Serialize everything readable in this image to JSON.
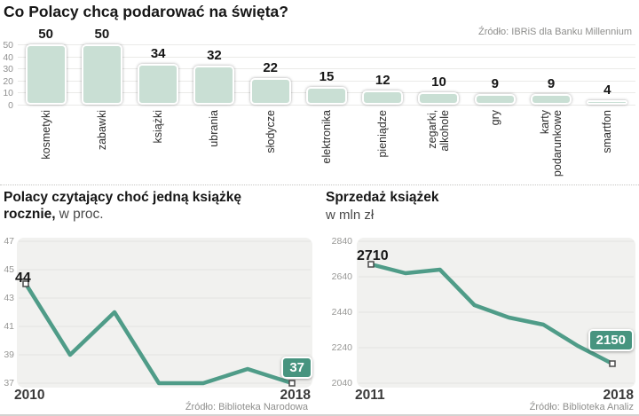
{
  "colors": {
    "bar_fill": "#c9dfd4",
    "line": "#4f9c88",
    "badge_bg": "#47947f",
    "plot_bg": "#f1f1ef"
  },
  "chart_data": [
    {
      "type": "bar",
      "title": "Co Polacy chcą podarować na święta?",
      "source": "Źródło: IBRiS dla Banku Millennium",
      "categories": [
        "kosmetyki",
        "zabawki",
        "książki",
        "ubrania",
        "słodycze",
        "elektronika",
        "pieniądze",
        "zegarki,\nalkohole",
        "gry",
        "karty\npodarunkowe",
        "smartfon"
      ],
      "values": [
        50,
        50,
        34,
        32,
        22,
        15,
        12,
        10,
        9,
        9,
        4
      ],
      "ylim": [
        0,
        50
      ],
      "yticks": [
        50,
        40,
        30,
        20,
        10,
        0
      ],
      "grid": true,
      "bar_color": "#c9dfd4"
    },
    {
      "type": "line",
      "title_line1": "Polacy czytający choć jedną książkę",
      "title_line2_bold": "rocznie,",
      "title_line2_rest": "w proc.",
      "values": [
        44,
        39,
        42,
        37,
        37,
        38,
        37
      ],
      "xtick_labels": [
        "2010",
        "2018"
      ],
      "ylim": [
        37,
        47
      ],
      "yticks": [
        47,
        45,
        43,
        41,
        39,
        37
      ],
      "first_point_label": "44",
      "end_badge": "37",
      "source": "Źródło: Biblioteka Narodowa",
      "line_color": "#4f9c88",
      "grid": true,
      "legend": "none"
    },
    {
      "type": "line",
      "title": "Sprzedaż książek",
      "subtitle": "w mln zł",
      "values": [
        2710,
        2660,
        2680,
        2480,
        2410,
        2370,
        2250,
        2150
      ],
      "xtick_labels": [
        "2011",
        "2018"
      ],
      "ylim": [
        2040,
        2840
      ],
      "yticks": [
        2840,
        2640,
        2440,
        2240,
        2040
      ],
      "first_point_label": "2710",
      "end_badge": "2150",
      "source": "Źródło: Biblioteka Analiz",
      "line_color": "#4f9c88",
      "grid": true,
      "legend": "none"
    }
  ]
}
